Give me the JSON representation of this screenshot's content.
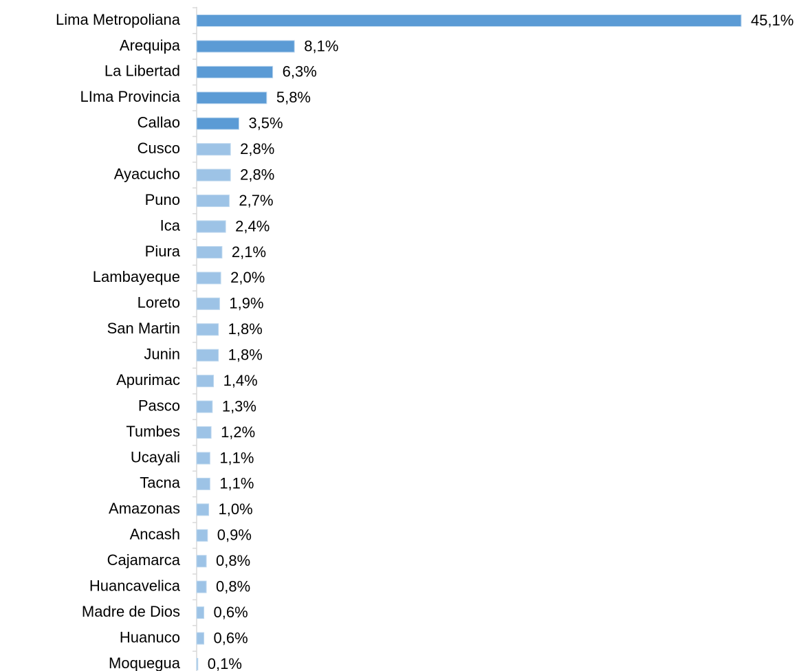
{
  "chart_data": {
    "type": "hbar",
    "categories": [
      "Lima Metropoliana",
      "Arequipa",
      "La Libertad",
      "LIma Provincia",
      "Callao",
      "Cusco",
      "Ayacucho",
      "Puno",
      "Ica",
      "Piura",
      "Lambayeque",
      "Loreto",
      "San Martin",
      "Junin",
      "Apurimac",
      "Pasco",
      "Tumbes",
      "Ucayali",
      "Tacna",
      "Amazonas",
      "Ancash",
      "Cajamarca",
      "Huancavelica",
      "Madre de Dios",
      "Huanuco",
      "Moquegua"
    ],
    "values": [
      45.1,
      8.1,
      6.3,
      5.8,
      3.5,
      2.8,
      2.8,
      2.7,
      2.4,
      2.1,
      2.0,
      1.9,
      1.8,
      1.8,
      1.4,
      1.3,
      1.2,
      1.1,
      1.1,
      1.0,
      0.9,
      0.8,
      0.8,
      0.6,
      0.6,
      0.1
    ],
    "value_labels": [
      "45,1%",
      "8,1%",
      "6,3%",
      "5,8%",
      "3,5%",
      "2,8%",
      "2,8%",
      "2,7%",
      "2,4%",
      "2,1%",
      "2,0%",
      "1,9%",
      "1,8%",
      "1,8%",
      "1,4%",
      "1,3%",
      "1,2%",
      "1,1%",
      "1,1%",
      "1,0%",
      "0,9%",
      "0,8%",
      "0,8%",
      "0,6%",
      "0,6%",
      "0,1%"
    ],
    "colors": [
      "#5b9bd5",
      "#5b9bd5",
      "#5b9bd5",
      "#5b9bd5",
      "#5b9bd5",
      "#9dc3e6",
      "#9dc3e6",
      "#9dc3e6",
      "#9dc3e6",
      "#9dc3e6",
      "#9dc3e6",
      "#9dc3e6",
      "#9dc3e6",
      "#9dc3e6",
      "#9dc3e6",
      "#9dc3e6",
      "#9dc3e6",
      "#9dc3e6",
      "#9dc3e6",
      "#9dc3e6",
      "#9dc3e6",
      "#9dc3e6",
      "#9dc3e6",
      "#9dc3e6",
      "#9dc3e6",
      "#9dc3e6"
    ]
  }
}
